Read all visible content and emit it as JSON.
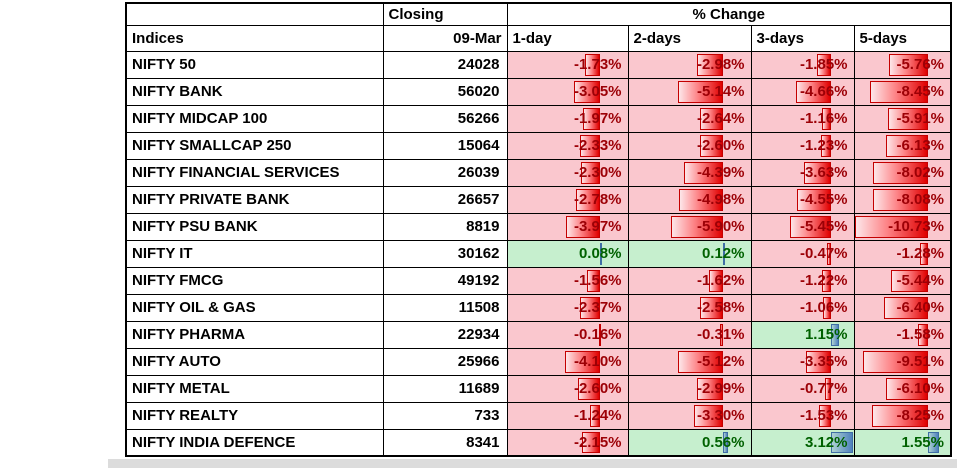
{
  "table": {
    "header": {
      "closing": "Closing",
      "pct_change": "% Change",
      "indices": "Indices",
      "date": "09-Mar",
      "periods": [
        "1-day",
        "2-days",
        "3-days",
        "5-days"
      ]
    },
    "rows": [
      {
        "name": "NIFTY 50",
        "close": "24028",
        "changes": [
          -1.73,
          -2.98,
          -1.85,
          -5.76
        ]
      },
      {
        "name": "NIFTY BANK",
        "close": "56020",
        "changes": [
          -3.05,
          -5.14,
          -4.66,
          -8.45
        ]
      },
      {
        "name": "NIFTY MIDCAP 100",
        "close": "56266",
        "changes": [
          -1.97,
          -2.64,
          -1.16,
          -5.91
        ]
      },
      {
        "name": "NIFTY SMALLCAP 250",
        "close": "15064",
        "changes": [
          -2.33,
          -2.6,
          -1.23,
          -6.13
        ]
      },
      {
        "name": "NIFTY FINANCIAL SERVICES",
        "close": "26039",
        "changes": [
          -2.3,
          -4.39,
          -3.63,
          -8.02
        ]
      },
      {
        "name": "NIFTY PRIVATE BANK",
        "close": "26657",
        "changes": [
          -2.78,
          -4.98,
          -4.55,
          -8.08
        ]
      },
      {
        "name": "NIFTY PSU BANK",
        "close": "8819",
        "changes": [
          -3.97,
          -5.9,
          -5.45,
          -10.73
        ]
      },
      {
        "name": "NIFTY IT",
        "close": "30162",
        "changes": [
          0.08,
          0.12,
          -0.47,
          -1.28
        ]
      },
      {
        "name": "NIFTY FMCG",
        "close": "49192",
        "changes": [
          -1.56,
          -1.62,
          -1.22,
          -5.44
        ]
      },
      {
        "name": "NIFTY OIL & GAS",
        "close": "11508",
        "changes": [
          -2.37,
          -2.58,
          -1.06,
          -6.4
        ]
      },
      {
        "name": "NIFTY PHARMA",
        "close": "22934",
        "changes": [
          -0.16,
          -0.31,
          1.15,
          -1.58
        ]
      },
      {
        "name": "NIFTY AUTO",
        "close": "25966",
        "changes": [
          -4.1,
          -5.12,
          -3.35,
          -9.51
        ]
      },
      {
        "name": "NIFTY METAL",
        "close": "11689",
        "changes": [
          -2.6,
          -2.99,
          -0.77,
          -6.1
        ]
      },
      {
        "name": "NIFTY REALTY",
        "close": "733",
        "changes": [
          -1.24,
          -3.3,
          -1.53,
          -8.25
        ]
      },
      {
        "name": "NIFTY INDIA DEFENCE",
        "close": "8341",
        "changes": [
          -2.15,
          0.56,
          3.12,
          1.55
        ]
      }
    ],
    "colors": {
      "negative_bg": "#FAC7CE",
      "negative_text": "#9C0006",
      "positive_bg": "#C6EFCE",
      "positive_text": "#006100",
      "negative_bar": "#E00000",
      "positive_bar": "#4F81BD"
    }
  }
}
